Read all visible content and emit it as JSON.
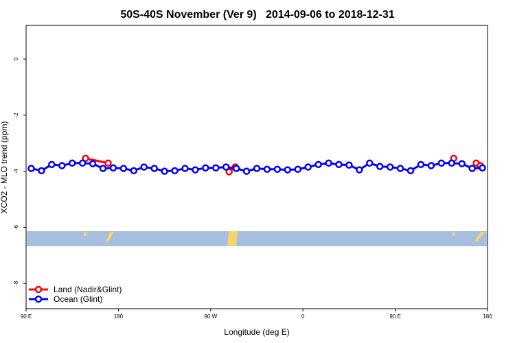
{
  "chart_data": {
    "type": "line",
    "title": "50S-40S November (Ver 9)   2014-09-06 to 2018-12-31",
    "x_label": "Longitude (deg E)",
    "y_label": "XCO2 - MLO trend (ppm)",
    "xlim": [
      90,
      540
    ],
    "ylim": [
      -8.9,
      1.2
    ],
    "xticks": [
      {
        "value": 90,
        "label": "90 E"
      },
      {
        "value": 180,
        "label": "180"
      },
      {
        "value": 270,
        "label": "90 W"
      },
      {
        "value": 360,
        "label": "0"
      },
      {
        "value": 450,
        "label": "90 E"
      },
      {
        "value": 540,
        "label": "180"
      }
    ],
    "yticks": [
      0,
      -2,
      -4,
      -6,
      -8
    ],
    "legend": "bottom-left",
    "series": [
      {
        "name": "Land (Nadir&Glint)",
        "color": "#ff0000",
        "x": [
          148,
          170,
          null,
          288,
          294,
          null,
          507,
          null,
          529,
          533
        ],
        "values": [
          -3.54,
          -3.71,
          null,
          -4.02,
          -3.85,
          null,
          -3.54,
          null,
          -3.71,
          -3.8
        ]
      },
      {
        "name": "Ocean (Glint)",
        "color": "#0000ff",
        "x": [
          95,
          105,
          115,
          125,
          135,
          145,
          155,
          165,
          175,
          185,
          195,
          205,
          215,
          225,
          235,
          245,
          255,
          265,
          275,
          285,
          295,
          305,
          315,
          325,
          335,
          345,
          355,
          365,
          375,
          385,
          395,
          405,
          415,
          425,
          435,
          445,
          455,
          465,
          475,
          485,
          495,
          505,
          515,
          525,
          535
        ],
        "values": [
          -3.9,
          -3.98,
          -3.76,
          -3.8,
          -3.71,
          -3.71,
          -3.73,
          -3.9,
          -3.88,
          -3.9,
          -3.98,
          -3.85,
          -3.9,
          -4.0,
          -3.98,
          -3.9,
          -3.95,
          -3.88,
          -3.88,
          -3.85,
          -3.9,
          -4.0,
          -3.9,
          -3.93,
          -3.93,
          -3.95,
          -3.93,
          -3.85,
          -3.76,
          -3.71,
          -3.76,
          -3.78,
          -3.95,
          -3.71,
          -3.83,
          -3.85,
          -3.9,
          -3.98,
          -3.76,
          -3.8,
          -3.71,
          -3.71,
          -3.73,
          -3.9,
          -3.88
        ]
      }
    ]
  }
}
